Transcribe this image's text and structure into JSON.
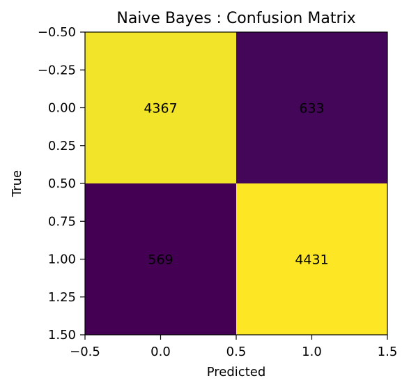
{
  "chart_data": {
    "type": "heatmap",
    "title": "Naive Bayes : Confusion Matrix",
    "xlabel": "Predicted",
    "ylabel": "True",
    "matrix": [
      [
        4367,
        633
      ],
      [
        569,
        4431
      ]
    ],
    "xlim": [
      -0.5,
      1.5
    ],
    "ylim": [
      -0.5,
      1.5
    ],
    "y_inverted": true,
    "xticks": [
      {
        "value": -0.5,
        "label": "−0.5"
      },
      {
        "value": 0.0,
        "label": "0.0"
      },
      {
        "value": 0.5,
        "label": "0.5"
      },
      {
        "value": 1.0,
        "label": "1.0"
      },
      {
        "value": 1.5,
        "label": "1.5"
      }
    ],
    "yticks": [
      {
        "value": -0.5,
        "label": "−0.50"
      },
      {
        "value": -0.25,
        "label": "−0.25"
      },
      {
        "value": 0.0,
        "label": "0.00"
      },
      {
        "value": 0.25,
        "label": "0.25"
      },
      {
        "value": 0.5,
        "label": "0.50"
      },
      {
        "value": 0.75,
        "label": "0.75"
      },
      {
        "value": 1.0,
        "label": "1.00"
      },
      {
        "value": 1.25,
        "label": "1.25"
      },
      {
        "value": 1.5,
        "label": "1.50"
      }
    ],
    "colormap": "viridis",
    "colors": {
      "high": "#fde725",
      "low": "#440154"
    },
    "grid": false,
    "legend": "none"
  }
}
